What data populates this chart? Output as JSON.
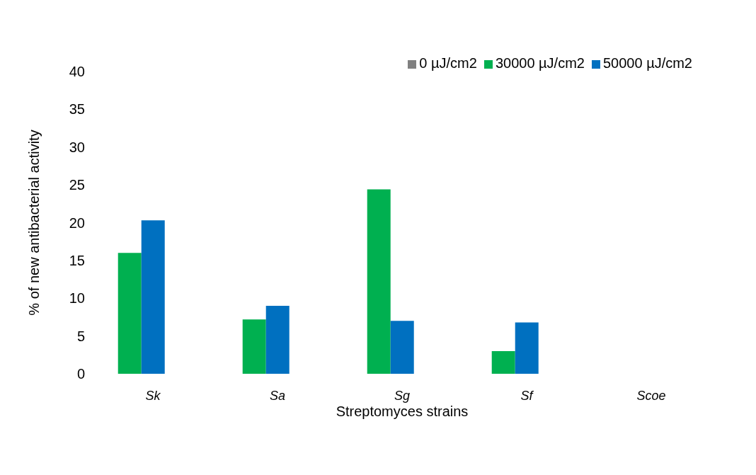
{
  "chart_data": {
    "type": "bar",
    "xlabel": "Streptomyces strains",
    "ylabel": "% of new antibacterial activity",
    "categories": [
      "Sk",
      "Sa",
      "Sg",
      "Sf",
      "Scoe"
    ],
    "series": [
      {
        "name": "30000 µJ/cm2",
        "color": "#00b050",
        "values": [
          16,
          7.2,
          24.4,
          3,
          0
        ]
      },
      {
        "name": "50000 µJ/cm2",
        "color": "#0070c0",
        "values": [
          20.3,
          9,
          7,
          6.8,
          0
        ]
      },
      {
        "name": "0 µJ/cm2",
        "color": "#808080",
        "values": [
          0,
          0,
          0,
          0,
          0
        ]
      }
    ],
    "ylim": [
      0,
      40
    ],
    "yticks": [
      0,
      5,
      10,
      15,
      20,
      25,
      30,
      35,
      40
    ],
    "grid": false,
    "legend": "top right"
  }
}
